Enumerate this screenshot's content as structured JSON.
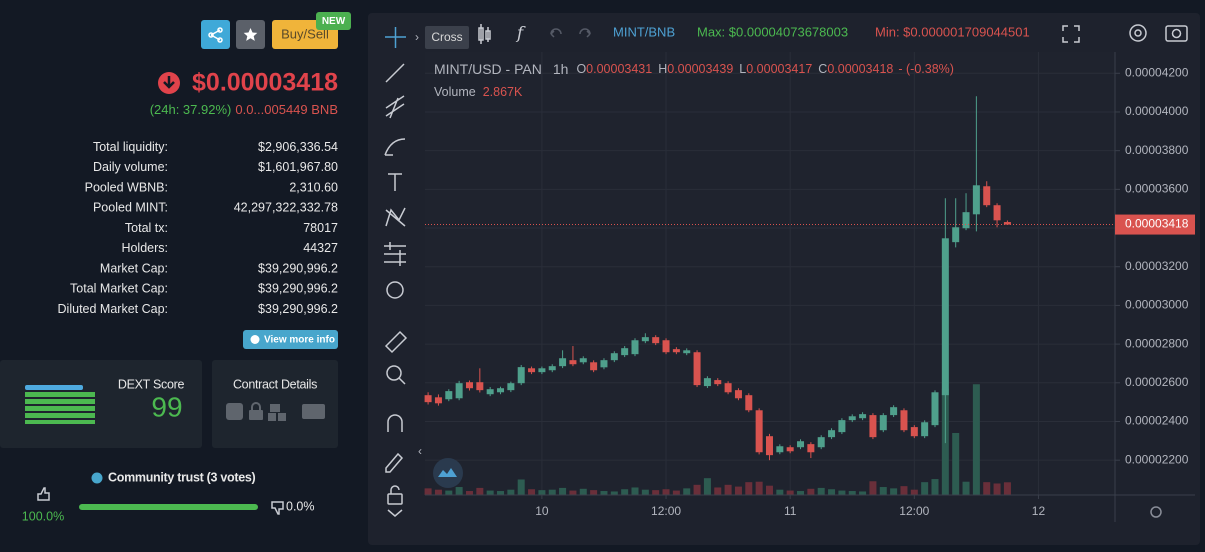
{
  "header": {
    "buy_sell": "Buy/Sell",
    "badge": "NEW"
  },
  "price": {
    "usd": "$0.00003418",
    "change_24h": "(24h: 37.92%)",
    "bnb": "0.0...005449 BNB"
  },
  "stats": [
    {
      "label": "Total liquidity:",
      "value": "$2,906,336.54"
    },
    {
      "label": "Daily volume:",
      "value": "$1,601,967.80"
    },
    {
      "label": "Pooled WBNB:",
      "value": "2,310.60"
    },
    {
      "label": "Pooled MINT:",
      "value": "42,297,322,332.78"
    },
    {
      "label": "Total tx:",
      "value": "78017"
    },
    {
      "label": "Holders:",
      "value": "44327"
    },
    {
      "label": "Market Cap:",
      "value": "$39,290,996.2"
    },
    {
      "label": "Total Market Cap:",
      "value": "$39,290,996.2"
    },
    {
      "label": "Diluted Market Cap:",
      "value": "$39,290,996.2"
    }
  ],
  "view_more": "View more info",
  "dext": {
    "title": "DEXT Score",
    "score": "99"
  },
  "contract": {
    "title": "Contract Details"
  },
  "community": {
    "title": "Community trust (3 votes)",
    "up": "100.0%",
    "down": "0.0%"
  },
  "toolbar": {
    "tooltip": "Cross",
    "pair": "MINT/BNB",
    "max": "Max: $0.00004073678003",
    "min": "Min: $0.000001709044501"
  },
  "legend": {
    "symbol": "MINT/USD - PAN",
    "interval": "1h",
    "o_label": "O",
    "o": "0.00003431",
    "h_label": "H",
    "h": "0.00003439",
    "l_label": "L",
    "l": "0.00003417",
    "c_label": "C",
    "c": "0.00003418",
    "change": "- (-0.38%)",
    "volume_label": "Volume",
    "volume": "2.867K"
  },
  "chart": {
    "type": "candlestick",
    "open": [
      2.536e-05,
      2.525e-05,
      2.515e-05,
      2.52e-05,
      2.603e-05,
      2.603e-05,
      2.541e-05,
      2.551e-05,
      2.562e-05,
      2.598e-05,
      2.675e-05,
      2.655e-05,
      2.665e-05,
      2.686e-05,
      2.717e-05,
      2.706e-05,
      2.706e-05,
      2.68e-05,
      2.717e-05,
      2.743e-05,
      2.748e-05,
      2.815e-05,
      2.836e-05,
      2.82e-05,
      2.774e-05,
      2.753e-05,
      2.758e-05,
      2.583e-05,
      2.614e-05,
      2.598e-05,
      2.562e-05,
      2.536e-05,
      2.458e-05,
      2.324e-05,
      2.241e-05,
      2.267e-05,
      2.267e-05,
      2.283e-05,
      2.267e-05,
      2.319e-05,
      2.345e-05,
      2.407e-05,
      2.417e-05,
      2.433e-05,
      2.355e-05,
      2.433e-05,
      2.458e-05,
      2.371e-05,
      2.324e-05,
      2.381e-05,
      2.536e-05,
      3.327e-05,
      3.399e-05,
      3.471e-05,
      3.616e-05,
      3.518e-05,
      3.431e-05
    ],
    "high": [
      2.551e-05,
      2.54e-05,
      2.567e-05,
      2.61e-05,
      2.612e-05,
      2.675e-05,
      2.578e-05,
      2.58e-05,
      2.606e-05,
      2.692e-05,
      2.684e-05,
      2.684e-05,
      2.696e-05,
      2.768e-05,
      2.79e-05,
      2.737e-05,
      2.716e-05,
      2.727e-05,
      2.763e-05,
      2.79e-05,
      2.83e-05,
      2.856e-05,
      2.846e-05,
      2.83e-05,
      2.784e-05,
      2.778e-05,
      2.768e-05,
      2.634e-05,
      2.624e-05,
      2.608e-05,
      2.572e-05,
      2.546e-05,
      2.468e-05,
      2.336e-05,
      2.282e-05,
      2.277e-05,
      2.308e-05,
      2.293e-05,
      2.329e-05,
      2.365e-05,
      2.417e-05,
      2.437e-05,
      2.448e-05,
      2.443e-05,
      2.443e-05,
      2.484e-05,
      2.468e-05,
      2.381e-05,
      2.406e-05,
      2.561e-05,
      3.554e-05,
      3.554e-05,
      3.58e-05,
      4.081e-05,
      3.642e-05,
      3.528e-05,
      3.439e-05
    ],
    "low": [
      2.488e-05,
      2.482e-05,
      2.505e-05,
      2.51e-05,
      2.56e-05,
      2.55e-05,
      2.531e-05,
      2.541e-05,
      2.552e-05,
      2.588e-05,
      2.645e-05,
      2.645e-05,
      2.655e-05,
      2.676e-05,
      2.686e-05,
      2.696e-05,
      2.655e-05,
      2.67e-05,
      2.707e-05,
      2.733e-05,
      2.738e-05,
      2.805e-05,
      2.795e-05,
      2.748e-05,
      2.748e-05,
      2.743e-05,
      2.578e-05,
      2.573e-05,
      2.583e-05,
      2.541e-05,
      2.51e-05,
      2.448e-05,
      2.23e-05,
      2.2e-05,
      2.231e-05,
      2.236e-05,
      2.257e-05,
      2.211e-05,
      2.257e-05,
      2.309e-05,
      2.335e-05,
      2.397e-05,
      2.407e-05,
      2.309e-05,
      2.345e-05,
      2.423e-05,
      2.345e-05,
      2.314e-05,
      2.314e-05,
      2.371e-05,
      2.288e-05,
      3.3e-05,
      3.389e-05,
      3.383e-05,
      3.508e-05,
      3.404e-05,
      3.417e-05
    ],
    "close": [
      2.5e-05,
      2.494e-05,
      2.557e-05,
      2.598e-05,
      2.572e-05,
      2.562e-05,
      2.567e-05,
      2.572e-05,
      2.598e-05,
      2.681e-05,
      2.655e-05,
      2.675e-05,
      2.686e-05,
      2.727e-05,
      2.696e-05,
      2.727e-05,
      2.665e-05,
      2.717e-05,
      2.753e-05,
      2.779e-05,
      2.82e-05,
      2.836e-05,
      2.805e-05,
      2.758e-05,
      2.758e-05,
      2.768e-05,
      2.588e-05,
      2.624e-05,
      2.593e-05,
      2.551e-05,
      2.52e-05,
      2.458e-05,
      2.241e-05,
      2.226e-05,
      2.272e-05,
      2.246e-05,
      2.298e-05,
      2.241e-05,
      2.319e-05,
      2.355e-05,
      2.407e-05,
      2.427e-05,
      2.438e-05,
      2.319e-05,
      2.433e-05,
      2.474e-05,
      2.355e-05,
      2.324e-05,
      2.396e-05,
      2.551e-05,
      3.347e-05,
      3.404e-05,
      3.482e-05,
      3.621e-05,
      3.518e-05,
      3.44e-05,
      3.418e-05
    ],
    "volume": [
      1500,
      1200,
      1000,
      1800,
      900,
      1600,
      1000,
      900,
      1200,
      3500,
      1300,
      1100,
      1200,
      1600,
      1000,
      1400,
      1100,
      900,
      800,
      1300,
      1700,
      1200,
      1100,
      1300,
      1000,
      1500,
      2300,
      3800,
      1700,
      2300,
      1900,
      2900,
      3000,
      2100,
      1200,
      1000,
      900,
      1400,
      1600,
      1300,
      1000,
      900,
      800,
      3100,
      1800,
      1500,
      2000,
      1200,
      2900,
      3600,
      24000,
      14000,
      3000,
      25000,
      2900,
      2600,
      2867
    ],
    "xlim": [
      -0.3,
      66.4
    ],
    "xticks": [
      {
        "value": 11,
        "label": "10"
      },
      {
        "value": 23,
        "label": "12:00"
      },
      {
        "value": 35,
        "label": "11"
      },
      {
        "value": 47,
        "label": "12:00"
      },
      {
        "value": 59,
        "label": "12"
      }
    ],
    "ylim": [
      2.02e-05,
      4.31e-05
    ],
    "yticks": [
      {
        "value": 2.2e-05,
        "label": "0.00002200"
      },
      {
        "value": 2.4e-05,
        "label": "0.00002400"
      },
      {
        "value": 2.6e-05,
        "label": "0.00002600"
      },
      {
        "value": 2.8e-05,
        "label": "0.00002800"
      },
      {
        "value": 3e-05,
        "label": "0.00003000"
      },
      {
        "value": 3.2e-05,
        "label": "0.00003200"
      },
      {
        "value": 3.4e-05,
        "label": "0.00003400"
      },
      {
        "value": 3.6e-05,
        "label": "0.00003600"
      },
      {
        "value": 3.8e-05,
        "label": "0.00003800"
      },
      {
        "value": 4e-05,
        "label": "0.00004000"
      },
      {
        "value": 4.2e-05,
        "label": "0.00004200"
      }
    ],
    "volume_lim": [
      0,
      100000
    ],
    "last_price": 3.418e-05,
    "grid": true,
    "up_color": "#4fa08c",
    "down_color": "#d9534f",
    "up_volume_color": "#2d5c51",
    "down_volume_color": "#6a2f3a"
  }
}
